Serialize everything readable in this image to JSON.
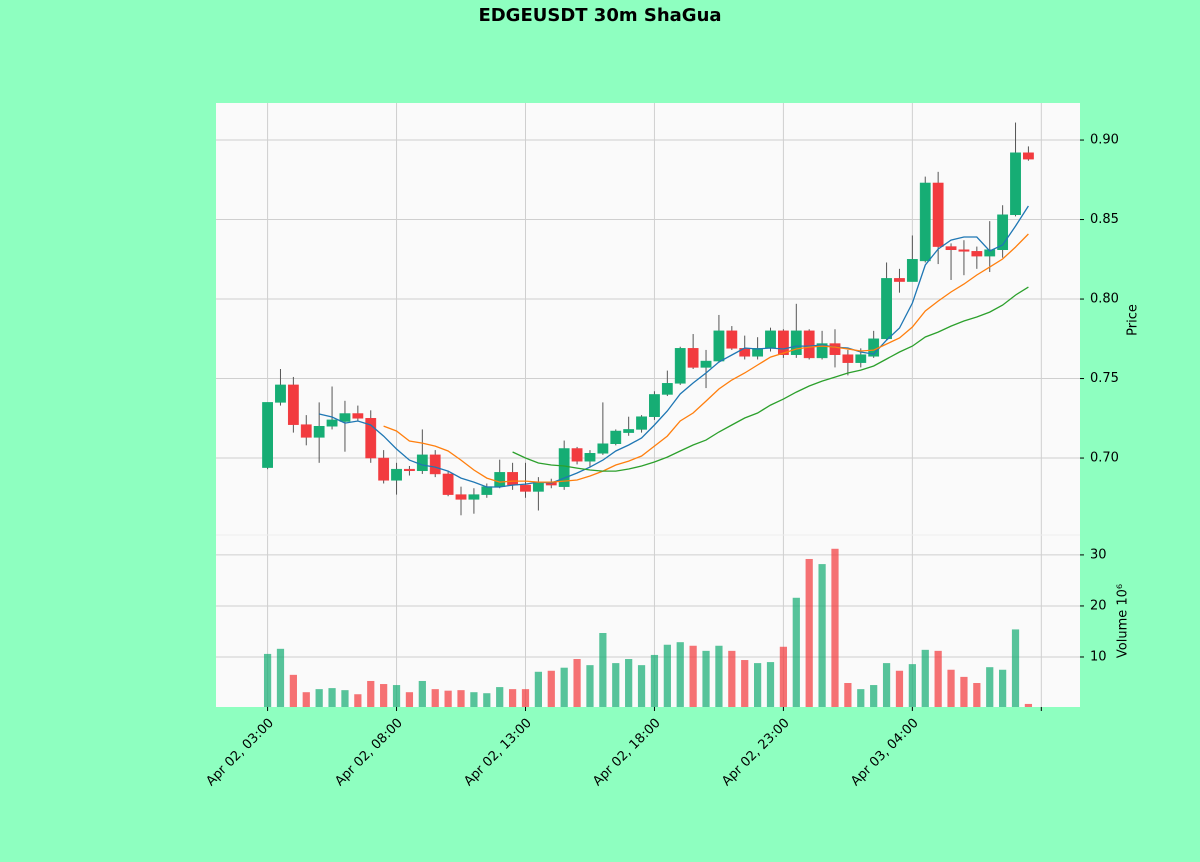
{
  "chart_data": {
    "type": "candlestick",
    "title": "EDGEUSDT 30m ShaGua",
    "ylabel": "Price",
    "volume_label": "Volume  10⁶",
    "up_color": "#16ad74",
    "down_color": "#f23b3f",
    "grid": true,
    "xlim": [
      -4,
      63
    ],
    "xticks": [
      {
        "value": 0,
        "label": "Apr 02, 03:00"
      },
      {
        "value": 10,
        "label": "Apr 02, 08:00"
      },
      {
        "value": 20,
        "label": "Apr 02, 13:00"
      },
      {
        "value": 30,
        "label": "Apr 02, 18:00"
      },
      {
        "value": 40,
        "label": "Apr 02, 23:00"
      },
      {
        "value": 50,
        "label": "Apr 03, 04:00"
      },
      {
        "value": 60,
        "label": null
      }
    ],
    "ylim": [
      0.6516,
      0.9233
    ],
    "yticks": [
      {
        "value": 0.7,
        "label": "0.70"
      },
      0.75,
      {
        "value": 0.8,
        "label": "0.80"
      },
      0.85,
      {
        "value": 0.9,
        "label": "0.90"
      }
    ],
    "volume_ylim": [
      0.2,
      33.9
    ],
    "volume_yticks": [
      10,
      20,
      30
    ],
    "open": [
      0.694,
      0.735,
      0.746,
      0.721,
      0.713,
      0.72,
      0.723,
      0.728,
      0.725,
      0.7,
      0.686,
      0.693,
      0.692,
      0.702,
      0.69,
      0.677,
      0.674,
      0.677,
      0.682,
      0.691,
      0.683,
      0.679,
      0.685,
      0.682,
      0.706,
      0.698,
      0.703,
      0.709,
      0.716,
      0.718,
      0.726,
      0.74,
      0.747,
      0.769,
      0.757,
      0.761,
      0.78,
      0.769,
      0.764,
      0.769,
      0.78,
      0.765,
      0.78,
      0.763,
      0.772,
      0.765,
      0.76,
      0.764,
      0.775,
      0.813,
      0.811,
      0.824,
      0.873,
      0.833,
      0.831,
      0.83,
      0.827,
      0.831,
      0.853,
      0.892
    ],
    "high": [
      0.735,
      0.756,
      0.751,
      0.727,
      0.735,
      0.745,
      0.736,
      0.733,
      0.73,
      0.705,
      0.697,
      0.695,
      0.718,
      0.705,
      0.692,
      0.682,
      0.681,
      0.684,
      0.699,
      0.697,
      0.697,
      0.688,
      0.687,
      0.711,
      0.707,
      0.705,
      0.735,
      0.718,
      0.726,
      0.727,
      0.742,
      0.755,
      0.77,
      0.778,
      0.768,
      0.79,
      0.783,
      0.777,
      0.776,
      0.782,
      0.781,
      0.797,
      0.781,
      0.78,
      0.781,
      0.768,
      0.769,
      0.78,
      0.823,
      0.819,
      0.84,
      0.877,
      0.88,
      0.835,
      0.837,
      0.833,
      0.849,
      0.859,
      0.911,
      0.896
    ],
    "low": [
      0.693,
      0.733,
      0.716,
      0.708,
      0.697,
      0.718,
      0.704,
      0.723,
      0.697,
      0.684,
      0.677,
      0.689,
      0.69,
      0.688,
      0.676,
      0.664,
      0.665,
      0.675,
      0.681,
      0.68,
      0.675,
      0.667,
      0.681,
      0.68,
      0.696,
      0.694,
      0.702,
      0.708,
      0.714,
      0.716,
      0.724,
      0.739,
      0.746,
      0.756,
      0.744,
      0.76,
      0.768,
      0.762,
      0.762,
      0.767,
      0.763,
      0.763,
      0.762,
      0.762,
      0.757,
      0.752,
      0.757,
      0.763,
      0.774,
      0.804,
      0.811,
      0.823,
      0.822,
      0.812,
      0.815,
      0.819,
      0.817,
      0.826,
      0.852,
      0.887
    ],
    "close": [
      0.735,
      0.746,
      0.721,
      0.713,
      0.72,
      0.724,
      0.728,
      0.725,
      0.7,
      0.686,
      0.693,
      0.692,
      0.702,
      0.69,
      0.677,
      0.674,
      0.677,
      0.682,
      0.691,
      0.683,
      0.679,
      0.685,
      0.683,
      0.706,
      0.698,
      0.703,
      0.709,
      0.717,
      0.718,
      0.726,
      0.74,
      0.747,
      0.769,
      0.757,
      0.761,
      0.78,
      0.769,
      0.764,
      0.769,
      0.78,
      0.765,
      0.78,
      0.763,
      0.772,
      0.765,
      0.76,
      0.765,
      0.775,
      0.813,
      0.811,
      0.825,
      0.873,
      0.833,
      0.831,
      0.83,
      0.827,
      0.831,
      0.853,
      0.892,
      0.888
    ],
    "volume": [
      10.6,
      11.6,
      6.5,
      3.1,
      3.7,
      3.9,
      3.5,
      2.7,
      5.3,
      4.7,
      4.5,
      3.1,
      5.3,
      3.7,
      3.4,
      3.5,
      3.1,
      2.9,
      4.1,
      3.7,
      3.7,
      7.1,
      7.3,
      7.9,
      9.6,
      8.4,
      14.7,
      8.8,
      9.6,
      8.4,
      10.4,
      12.4,
      12.9,
      12.2,
      11.2,
      12.2,
      11.2,
      9.4,
      8.8,
      9.0,
      12.0,
      21.6,
      29.2,
      28.2,
      31.2,
      4.9,
      3.7,
      4.5,
      8.8,
      7.3,
      8.6,
      11.4,
      11.2,
      7.5,
      6.1,
      4.9,
      8.0,
      7.5,
      15.4,
      0.8
    ],
    "moving_averages": [
      {
        "color": "#1f77b4",
        "values": [
          null,
          null,
          null,
          null,
          0.7277,
          0.7258,
          0.722,
          0.7233,
          0.7208,
          0.7138,
          0.7057,
          0.6987,
          0.6956,
          0.6943,
          0.6918,
          0.6874,
          0.6849,
          0.6818,
          0.6818,
          0.683,
          0.6836,
          0.6849,
          0.6843,
          0.6874,
          0.6906,
          0.6943,
          0.6987,
          0.7044,
          0.7082,
          0.7126,
          0.7208,
          0.7296,
          0.7403,
          0.7472,
          0.7535,
          0.7604,
          0.7648,
          0.7692,
          0.7686,
          0.7692,
          0.7686,
          0.7704,
          0.7704,
          0.7711,
          0.7698,
          0.7692,
          0.7667,
          0.7654,
          0.7742,
          0.7818,
          0.7975,
          0.8214,
          0.8314,
          0.8371,
          0.839,
          0.839,
          0.8302,
          0.834,
          0.8459,
          0.8585
        ]
      },
      {
        "color": "#ff7f0e",
        "values": [
          null,
          null,
          null,
          null,
          null,
          null,
          null,
          null,
          null,
          0.7201,
          0.717,
          0.7107,
          0.7094,
          0.7075,
          0.7044,
          0.6987,
          0.6925,
          0.6874,
          0.6849,
          0.6855,
          0.6855,
          0.6849,
          0.6849,
          0.6855,
          0.6862,
          0.6887,
          0.6918,
          0.6956,
          0.6981,
          0.7013,
          0.7075,
          0.7138,
          0.7233,
          0.7283,
          0.7358,
          0.7434,
          0.7491,
          0.7535,
          0.7585,
          0.7635,
          0.766,
          0.7686,
          0.7698,
          0.7704,
          0.7698,
          0.7686,
          0.7673,
          0.7679,
          0.7717,
          0.7755,
          0.7824,
          0.7925,
          0.7987,
          0.8044,
          0.8094,
          0.8151,
          0.8201,
          0.8252,
          0.8327,
          0.8409
        ]
      },
      {
        "color": "#2ca02c",
        "values": [
          null,
          null,
          null,
          null,
          null,
          null,
          null,
          null,
          null,
          null,
          null,
          null,
          null,
          null,
          null,
          null,
          null,
          null,
          null,
          0.7038,
          0.7,
          0.6969,
          0.6956,
          0.695,
          0.6937,
          0.6925,
          0.6918,
          0.6918,
          0.6931,
          0.695,
          0.6975,
          0.7006,
          0.7044,
          0.7082,
          0.7113,
          0.7164,
          0.7208,
          0.7252,
          0.7283,
          0.7333,
          0.7371,
          0.7415,
          0.7453,
          0.7484,
          0.7509,
          0.7535,
          0.7553,
          0.7579,
          0.7623,
          0.7667,
          0.7704,
          0.7761,
          0.7792,
          0.783,
          0.7862,
          0.7887,
          0.7918,
          0.7962,
          0.8025,
          0.8075
        ]
      }
    ]
  }
}
